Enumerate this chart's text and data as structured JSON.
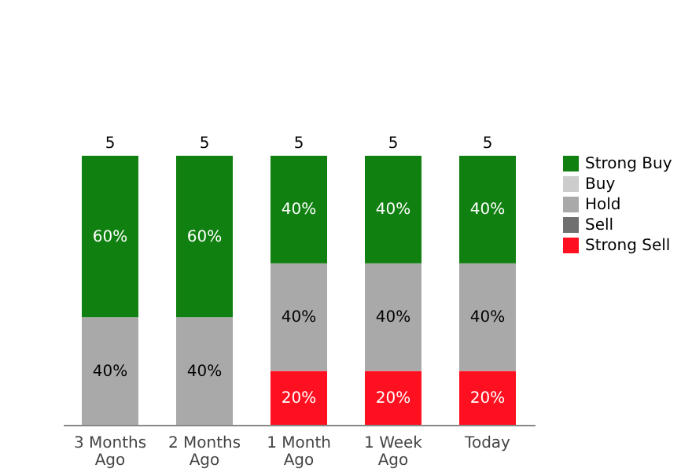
{
  "chart_data": {
    "type": "bar",
    "stacked": true,
    "legend": "right",
    "categories": [
      "3 Months Ago",
      "2 Months Ago",
      "1 Month Ago",
      "1 Week Ago",
      "Today"
    ],
    "series": [
      {
        "name": "Strong Sell",
        "color": "#ff1020",
        "values": [
          0,
          0,
          20,
          20,
          20
        ],
        "value_labels": [
          null,
          null,
          "20%",
          "20%",
          "20%"
        ]
      },
      {
        "name": "Sell",
        "color": "#707070",
        "values": [
          0,
          0,
          0,
          0,
          0
        ],
        "value_labels": [
          null,
          null,
          null,
          null,
          null
        ]
      },
      {
        "name": "Hold",
        "color": "#a9a9a9",
        "values": [
          40,
          40,
          40,
          40,
          40
        ],
        "value_labels": [
          "40%",
          "40%",
          "40%",
          "40%",
          "40%"
        ]
      },
      {
        "name": "Buy",
        "color": "#cccccc",
        "values": [
          0,
          0,
          0,
          0,
          0
        ],
        "value_labels": [
          null,
          null,
          null,
          null,
          null
        ]
      },
      {
        "name": "Strong Buy",
        "color": "#108010",
        "values": [
          60,
          60,
          40,
          40,
          40
        ],
        "value_labels": [
          "60%",
          "60%",
          "40%",
          "40%",
          "40%"
        ]
      }
    ],
    "annotations": [
      {
        "text": "5",
        "x": "3 Months Ago",
        "y": 100
      },
      {
        "text": "5",
        "x": "2 Months Ago",
        "y": 100
      },
      {
        "text": "5",
        "x": "1 Month Ago",
        "y": 100
      },
      {
        "text": "5",
        "x": "1 Week Ago",
        "y": 100
      },
      {
        "text": "5",
        "x": "Today",
        "y": 100
      }
    ]
  }
}
